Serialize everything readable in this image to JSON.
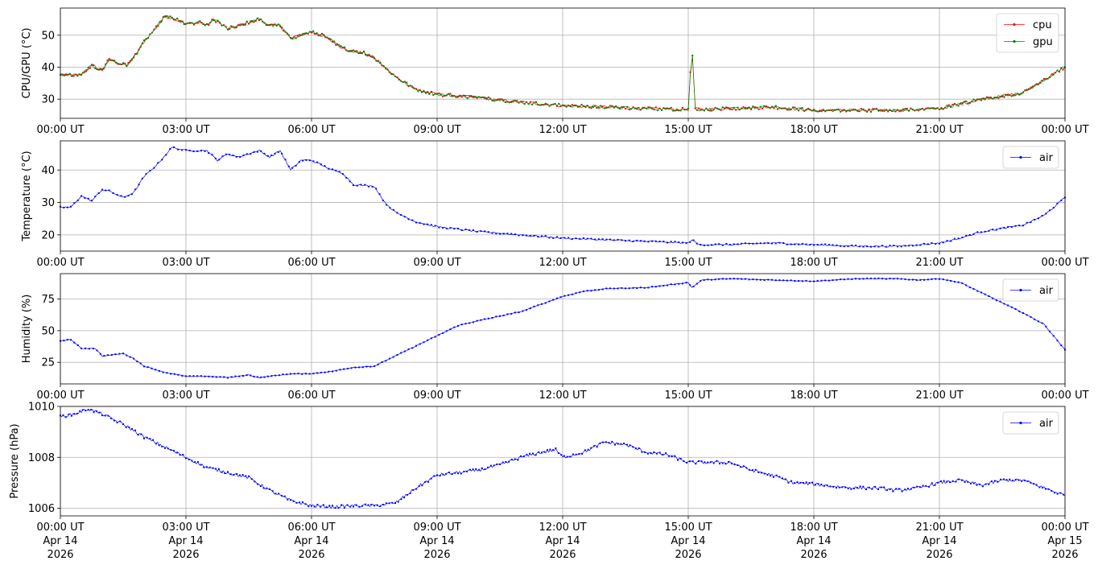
{
  "chart_data": [
    {
      "type": "line",
      "ylabel": "CPU/GPU (°C)",
      "ylim": [
        24,
        58.5
      ],
      "yticks": [
        30,
        40,
        50
      ],
      "grid": true,
      "legend_position": "top-right",
      "x": [
        "00:00",
        "00:30",
        "00:45",
        "01:00",
        "01:10",
        "01:20",
        "01:35",
        "01:45",
        "02:00",
        "02:20",
        "02:30",
        "02:45",
        "03:00",
        "03:20",
        "03:30",
        "03:40",
        "04:00",
        "04:15",
        "04:30",
        "04:45",
        "05:00",
        "05:15",
        "05:30",
        "05:45",
        "06:00",
        "06:15",
        "06:30",
        "06:45",
        "07:00",
        "07:15",
        "07:30",
        "08:00",
        "08:30",
        "09:00",
        "10:00",
        "11:00",
        "12:00",
        "13:00",
        "14:00",
        "15:00",
        "15:03",
        "15:06",
        "15:10",
        "15:15",
        "16:00",
        "17:00",
        "18:00",
        "19:00",
        "20:00",
        "21:00",
        "22:00",
        "23:00",
        "24:00"
      ],
      "series": [
        {
          "name": "cpu",
          "color": "#ff0000",
          "values": [
            37.5,
            37.5,
            40.5,
            39,
            42.5,
            41.5,
            40.5,
            43,
            48,
            53,
            56,
            55,
            53.5,
            54,
            53,
            55,
            52,
            53,
            54,
            55,
            53,
            53,
            49,
            50,
            51,
            50,
            48,
            46,
            45,
            44.5,
            43,
            37,
            33,
            31.5,
            30.5,
            29,
            28,
            27.5,
            27,
            26.8,
            38,
            43.5,
            27,
            26.8,
            27,
            27.5,
            26.5,
            26.5,
            26.5,
            27,
            30,
            32,
            40
          ]
        },
        {
          "name": "gpu",
          "color": "#008000",
          "values": [
            37.5,
            37.5,
            40.5,
            39,
            42.5,
            41.5,
            40.5,
            43,
            48,
            53,
            56,
            55,
            53.5,
            54,
            53,
            55,
            52,
            53,
            54,
            55,
            53,
            53,
            49,
            50,
            51,
            50,
            48,
            46,
            45,
            44.5,
            43,
            37,
            33,
            31.5,
            30.5,
            29,
            28,
            27.5,
            27,
            26.8,
            38,
            43.5,
            27,
            26.8,
            27,
            27.5,
            26.5,
            26.5,
            26.5,
            27,
            30,
            32,
            40
          ]
        }
      ]
    },
    {
      "type": "line",
      "ylabel": "Temperature (°C)",
      "ylim": [
        15,
        49
      ],
      "yticks": [
        20,
        30,
        40
      ],
      "grid": true,
      "legend_position": "top-right",
      "x": [
        "00:00",
        "00:15",
        "00:30",
        "00:45",
        "01:00",
        "01:10",
        "01:30",
        "01:45",
        "02:00",
        "02:20",
        "02:40",
        "03:00",
        "03:30",
        "03:45",
        "04:00",
        "04:15",
        "04:30",
        "04:45",
        "05:00",
        "05:15",
        "05:30",
        "05:45",
        "06:00",
        "06:30",
        "06:45",
        "07:00",
        "07:30",
        "07:45",
        "08:00",
        "08:30",
        "09:00",
        "10:00",
        "11:00",
        "12:00",
        "13:00",
        "14:00",
        "15:00",
        "15:05",
        "15:15",
        "16:00",
        "17:00",
        "18:00",
        "19:00",
        "20:00",
        "21:00",
        "21:30",
        "22:00",
        "23:00",
        "23:30",
        "24:00"
      ],
      "series": [
        {
          "name": "air",
          "color": "#0000ff",
          "values": [
            28.5,
            28.5,
            32,
            30.5,
            34,
            33.5,
            31.5,
            33,
            38,
            42,
            47,
            46,
            46,
            43,
            45,
            44,
            45,
            46,
            44,
            46,
            40,
            43,
            43,
            40,
            39,
            35.5,
            35,
            30,
            27,
            24,
            22.5,
            21,
            20,
            19,
            18.5,
            18,
            17.5,
            18.5,
            17,
            17,
            17.5,
            17,
            16.5,
            16.5,
            17.5,
            19,
            21,
            23,
            26,
            31.5
          ]
        }
      ]
    },
    {
      "type": "line",
      "ylabel": "Humidity (%)",
      "ylim": [
        8,
        95
      ],
      "yticks": [
        25,
        50,
        75
      ],
      "grid": true,
      "legend_position": "top-right",
      "x": [
        "00:00",
        "00:15",
        "00:30",
        "00:50",
        "01:00",
        "01:30",
        "01:45",
        "02:00",
        "02:30",
        "03:00",
        "03:30",
        "04:00",
        "04:30",
        "04:45",
        "05:00",
        "05:30",
        "06:00",
        "06:30",
        "07:00",
        "07:30",
        "08:00",
        "08:30",
        "09:00",
        "09:30",
        "10:00",
        "11:00",
        "12:00",
        "12:30",
        "13:00",
        "14:00",
        "15:00",
        "15:05",
        "15:20",
        "16:00",
        "17:00",
        "18:00",
        "18:30",
        "19:00",
        "20:00",
        "20:30",
        "21:00",
        "21:30",
        "22:00",
        "23:00",
        "23:30",
        "24:00"
      ],
      "series": [
        {
          "name": "air",
          "color": "#0000ff",
          "values": [
            42,
            43,
            36,
            36,
            30,
            32,
            28,
            22,
            17,
            14,
            14,
            13,
            15,
            13,
            14,
            16,
            16,
            18,
            21,
            22,
            30,
            38,
            46,
            54,
            58,
            65,
            77,
            81,
            83,
            84,
            88,
            84,
            90,
            91,
            90,
            89,
            90,
            91,
            91,
            90,
            91,
            88,
            80,
            64,
            55,
            35
          ]
        }
      ]
    },
    {
      "type": "line",
      "ylabel": "Pressure (hPa)",
      "ylim": [
        1005.7,
        1010
      ],
      "yticks": [
        1006,
        1008,
        1010
      ],
      "grid": true,
      "legend_position": "top-right",
      "x": [
        "00:00",
        "00:20",
        "00:30",
        "00:40",
        "01:00",
        "01:30",
        "02:00",
        "02:30",
        "03:00",
        "03:30",
        "04:00",
        "04:30",
        "05:00",
        "05:30",
        "06:00",
        "06:30",
        "07:00",
        "07:30",
        "08:00",
        "08:30",
        "09:00",
        "09:30",
        "10:00",
        "10:30",
        "11:00",
        "11:30",
        "11:50",
        "12:00",
        "12:30",
        "13:00",
        "13:30",
        "14:00",
        "14:30",
        "15:00",
        "15:30",
        "16:00",
        "16:30",
        "17:00",
        "17:30",
        "18:00",
        "18:30",
        "19:00",
        "19:30",
        "20:00",
        "20:30",
        "21:00",
        "21:30",
        "22:00",
        "22:30",
        "23:00",
        "23:30",
        "24:00"
      ],
      "series": [
        {
          "name": "air",
          "color": "#0000ff",
          "values": [
            1009.6,
            1009.7,
            1009.8,
            1009.9,
            1009.7,
            1009.3,
            1008.8,
            1008.4,
            1008.0,
            1007.6,
            1007.4,
            1007.2,
            1006.7,
            1006.3,
            1006.1,
            1006.05,
            1006.1,
            1006.1,
            1006.2,
            1006.8,
            1007.3,
            1007.4,
            1007.5,
            1007.7,
            1008.0,
            1008.2,
            1008.3,
            1008.0,
            1008.2,
            1008.6,
            1008.5,
            1008.2,
            1008.1,
            1007.8,
            1007.8,
            1007.8,
            1007.5,
            1007.3,
            1007.0,
            1006.95,
            1006.85,
            1006.8,
            1006.8,
            1006.7,
            1006.8,
            1007.0,
            1007.1,
            1006.9,
            1007.1,
            1007.1,
            1006.8,
            1006.5
          ]
        }
      ]
    }
  ],
  "x_axis": {
    "tick_labels": [
      "00:00 UT",
      "03:00 UT",
      "06:00 UT",
      "09:00 UT",
      "12:00 UT",
      "15:00 UT",
      "18:00 UT",
      "21:00 UT",
      "00:00 UT"
    ],
    "date_lines": [
      "Apr 14",
      "Apr 14",
      "Apr 14",
      "Apr 14",
      "Apr 14",
      "Apr 14",
      "Apr 14",
      "Apr 14",
      "Apr 15"
    ],
    "year_lines": [
      "2026",
      "2026",
      "2026",
      "2026",
      "2026",
      "2026",
      "2026",
      "2026",
      "2026"
    ]
  }
}
